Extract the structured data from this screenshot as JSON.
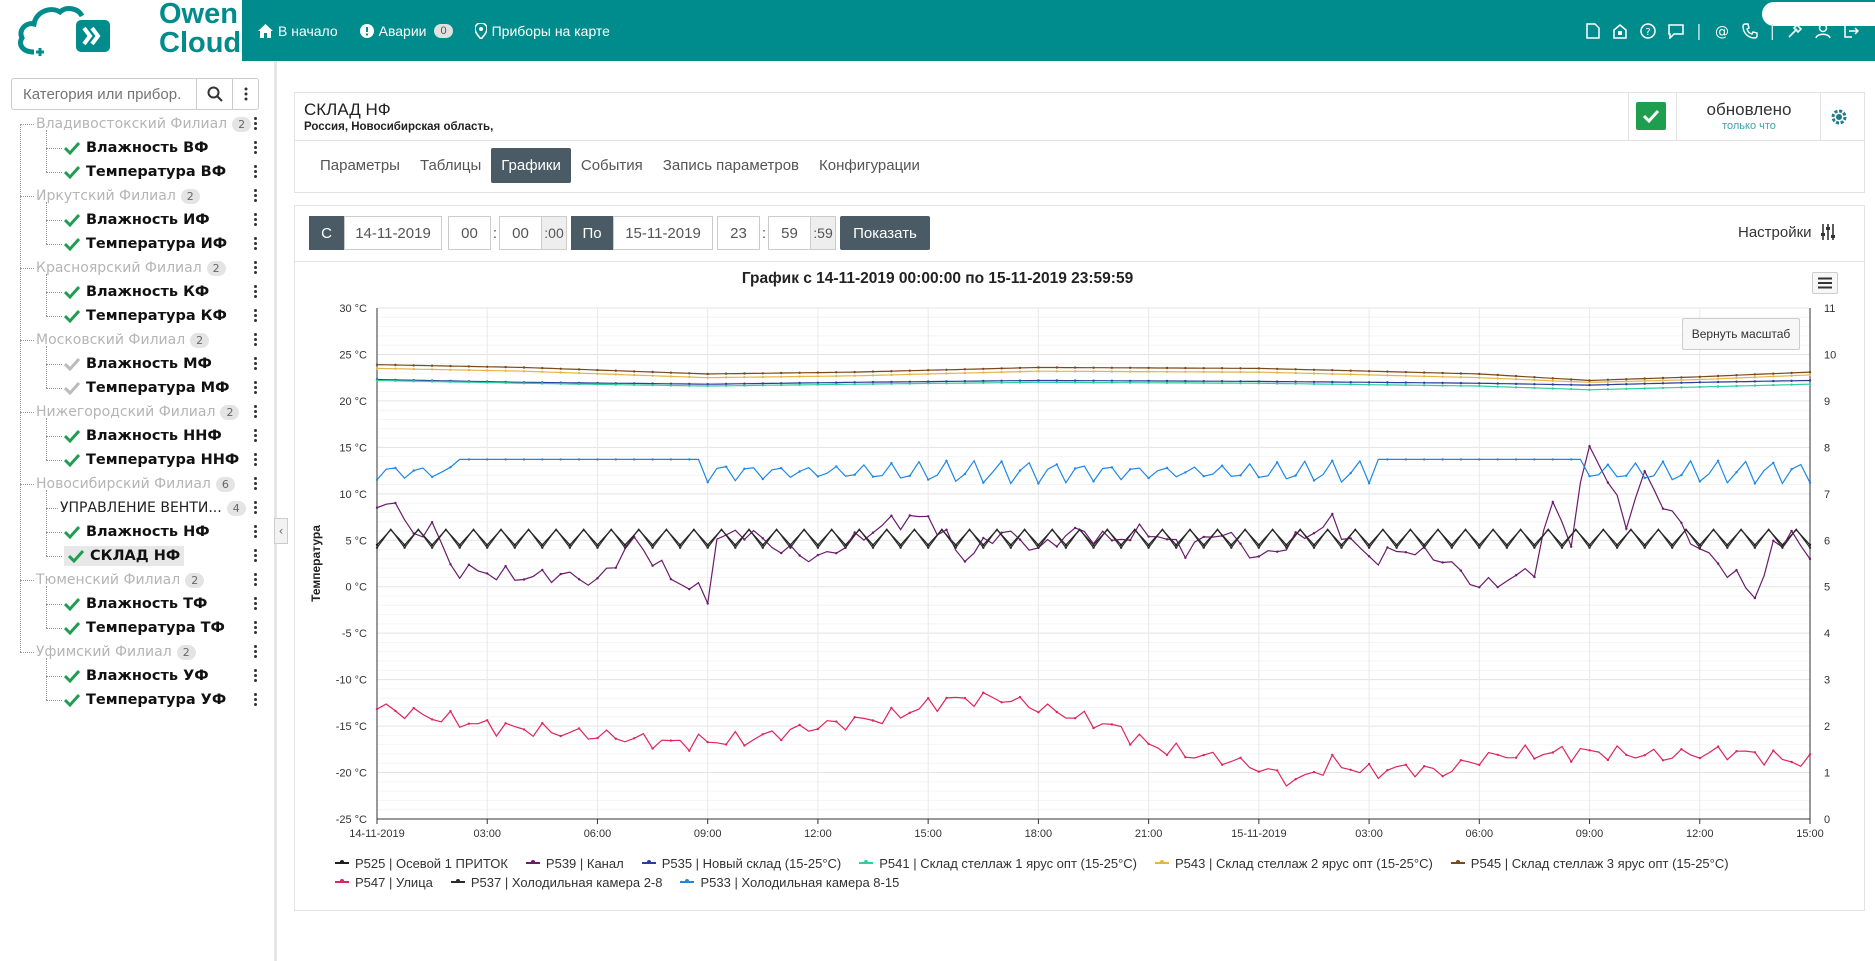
{
  "brand": {
    "line1": "Owen",
    "line2": "Cloud"
  },
  "nav": {
    "home": "В начало",
    "alarms": "Аварии",
    "alarms_count": "0",
    "map": "Приборы на карте"
  },
  "top_icons": [
    "document-icon",
    "lock-icon",
    "help-icon",
    "chat-icon",
    "email-icon",
    "phone-icon",
    "tools-icon",
    "user-icon",
    "logout-icon"
  ],
  "sidebar": {
    "search_placeholder": "Категория или прибор.",
    "groups": [
      {
        "label": "Владивостокский Филиал",
        "count": "2",
        "items": [
          {
            "label": "Влажность ВФ",
            "ok": true
          },
          {
            "label": "Температура ВФ",
            "ok": true
          }
        ]
      },
      {
        "label": "Иркутский Филиал",
        "count": "2",
        "items": [
          {
            "label": "Влажность ИФ",
            "ok": true
          },
          {
            "label": "Температура ИФ",
            "ok": true
          }
        ]
      },
      {
        "label": "Красноярский Филиал",
        "count": "2",
        "items": [
          {
            "label": "Влажность КФ",
            "ok": true
          },
          {
            "label": "Температура КФ",
            "ok": true
          }
        ]
      },
      {
        "label": "Московский Филиал",
        "count": "2",
        "items": [
          {
            "label": "Влажность МФ",
            "ok": false
          },
          {
            "label": "Температура МФ",
            "ok": false
          }
        ]
      },
      {
        "label": "Нижегородский Филиал",
        "count": "2",
        "items": [
          {
            "label": "Влажность ННФ",
            "ok": true
          },
          {
            "label": "Температура ННФ",
            "ok": true
          }
        ]
      },
      {
        "label": "Новосибирский Филиал",
        "count": "6",
        "subgroup": {
          "label": "УПРАВЛЕНИЕ ВЕНТИ...",
          "count": "4"
        },
        "items": [
          {
            "label": "Влажность НФ",
            "ok": true
          },
          {
            "label": "СКЛАД НФ",
            "ok": true,
            "selected": true
          }
        ]
      },
      {
        "label": "Тюменский Филиал",
        "count": "2",
        "items": [
          {
            "label": "Влажность ТФ",
            "ok": true
          },
          {
            "label": "Температура ТФ",
            "ok": true
          }
        ]
      },
      {
        "label": "Уфимский Филиал",
        "count": "2",
        "items": [
          {
            "label": "Влажность УФ",
            "ok": true
          },
          {
            "label": "Температура УФ",
            "ok": true
          }
        ]
      }
    ]
  },
  "device": {
    "title": "СКЛАД НФ",
    "address": "Россия, Новосибирская область,",
    "status": "обновлено",
    "status_sub": "только что"
  },
  "tabs": [
    {
      "label": "Параметры",
      "active": false
    },
    {
      "label": "Таблицы",
      "active": false
    },
    {
      "label": "Графики",
      "active": true
    },
    {
      "label": "События",
      "active": false
    },
    {
      "label": "Запись параметров",
      "active": false
    },
    {
      "label": "Конфигурации",
      "active": false
    }
  ],
  "toolbar": {
    "from_label": "С",
    "from_date": "14-11-2019",
    "from_h": "00",
    "from_m": "00",
    "from_s": ":00",
    "to_label": "По",
    "to_date": "15-11-2019",
    "to_h": "23",
    "to_m": "59",
    "to_s": ":59",
    "show": "Показать",
    "settings": "Настройки",
    "sep": ":"
  },
  "chart_data": {
    "type": "line",
    "title": "График с 14-11-2019 00:00:00 по 15-11-2019 23:59:59",
    "ylabel": "Температура",
    "ylim": [
      -25,
      30
    ],
    "yticks": [
      "30 °C",
      "25 °C",
      "20 °C",
      "15 °C",
      "10 °C",
      "5 °C",
      "0 °C",
      "-5 °C",
      "-10 °C",
      "-15 °C",
      "-20 °C",
      "-25 °C"
    ],
    "y2lim": [
      0,
      11
    ],
    "y2ticks": [
      "11",
      "10",
      "9",
      "8",
      "7",
      "6",
      "5",
      "4",
      "3",
      "2",
      "1",
      "0"
    ],
    "xticks": [
      "14-11-2019",
      "03:00",
      "06:00",
      "09:00",
      "12:00",
      "15:00",
      "18:00",
      "21:00",
      "15-11-2019",
      "03:00",
      "06:00",
      "09:00",
      "12:00",
      "15:00"
    ],
    "xlim_hours": [
      0,
      39
    ],
    "reset_zoom": "Вернуть масштаб",
    "grid": true,
    "legend_position": "bottom",
    "series": [
      {
        "name": "P525 | Осевой 1 ПРИТОК",
        "color": "#1f1f1f",
        "kind": "sawtooth",
        "base": 4.5,
        "amp": 6.5
      },
      {
        "name": "P539 | Канал",
        "color": "#6a1b6a",
        "kind": "noisy",
        "points": [
          [
            0,
            8
          ],
          [
            0.5,
            9.5
          ],
          [
            1,
            5
          ],
          [
            1.5,
            7
          ],
          [
            2,
            2
          ],
          [
            3,
            1.5
          ],
          [
            4,
            1
          ],
          [
            5,
            1.3
          ],
          [
            6,
            0.5
          ],
          [
            7,
            5
          ],
          [
            8,
            1
          ],
          [
            9,
            -1
          ],
          [
            9.2,
            5
          ],
          [
            10,
            6
          ],
          [
            11,
            4
          ],
          [
            12,
            3
          ],
          [
            13,
            5
          ],
          [
            14,
            7
          ],
          [
            15,
            7.5
          ],
          [
            16,
            3
          ],
          [
            17,
            6
          ],
          [
            18,
            4
          ],
          [
            19,
            6
          ],
          [
            20,
            5
          ],
          [
            21,
            6
          ],
          [
            22,
            4
          ],
          [
            23,
            6
          ],
          [
            24,
            3
          ],
          [
            25,
            5
          ],
          [
            26,
            7
          ],
          [
            27,
            3
          ],
          [
            28,
            4
          ],
          [
            29,
            3
          ],
          [
            30,
            0
          ],
          [
            31,
            1
          ],
          [
            31.5,
            2
          ],
          [
            32,
            9
          ],
          [
            32.5,
            5
          ],
          [
            33,
            15.5
          ],
          [
            34,
            7
          ],
          [
            34.5,
            12
          ],
          [
            35,
            9
          ],
          [
            36,
            4
          ],
          [
            37,
            1
          ],
          [
            37.5,
            -1
          ],
          [
            38,
            4
          ],
          [
            38.5,
            6
          ],
          [
            39,
            2.5
          ]
        ]
      },
      {
        "name": "P535 | Новый склад (15-25°С)",
        "color": "#2c3e99",
        "kind": "smooth",
        "points": [
          [
            0,
            22.3
          ],
          [
            4,
            22
          ],
          [
            9,
            21.8
          ],
          [
            13,
            22
          ],
          [
            18,
            22.2
          ],
          [
            24,
            22.1
          ],
          [
            30,
            21.9
          ],
          [
            33,
            21.7
          ],
          [
            36,
            22
          ],
          [
            39,
            22.2
          ]
        ]
      },
      {
        "name": "P541 | Склад стеллаж 1 ярус опт (15-25°С)",
        "color": "#2ecfa0",
        "kind": "smooth",
        "points": [
          [
            0,
            22.2
          ],
          [
            4,
            21.9
          ],
          [
            9,
            21.6
          ],
          [
            13,
            21.8
          ],
          [
            18,
            22
          ],
          [
            24,
            21.9
          ],
          [
            30,
            21.6
          ],
          [
            33,
            21.2
          ],
          [
            36,
            21.5
          ],
          [
            39,
            21.8
          ]
        ]
      },
      {
        "name": "P543 | Склад стеллаж 2 ярус опт (15-25°С)",
        "color": "#e6b54a",
        "kind": "smooth",
        "points": [
          [
            0,
            23.5
          ],
          [
            4,
            23.2
          ],
          [
            9,
            22.5
          ],
          [
            13,
            22.7
          ],
          [
            18,
            23.2
          ],
          [
            24,
            23.1
          ],
          [
            30,
            22.5
          ],
          [
            33,
            22
          ],
          [
            36,
            22.3
          ],
          [
            39,
            22.8
          ]
        ]
      },
      {
        "name": "P545 | Склад стеллаж 3 ярус опт (15-25°С)",
        "color": "#7a4a1a",
        "kind": "smooth",
        "points": [
          [
            0,
            23.9
          ],
          [
            4,
            23.6
          ],
          [
            9,
            22.9
          ],
          [
            13,
            23.1
          ],
          [
            18,
            23.6
          ],
          [
            24,
            23.5
          ],
          [
            30,
            22.9
          ],
          [
            33,
            22.2
          ],
          [
            36,
            22.6
          ],
          [
            39,
            23.1
          ]
        ]
      },
      {
        "name": "P547 | Улица",
        "color": "#e0245e",
        "kind": "noisy",
        "points": [
          [
            0,
            -13
          ],
          [
            3,
            -15
          ],
          [
            6,
            -16
          ],
          [
            8,
            -16.8
          ],
          [
            10,
            -16.5
          ],
          [
            12,
            -15
          ],
          [
            14,
            -14
          ],
          [
            15.5,
            -12.2
          ],
          [
            17,
            -12
          ],
          [
            18,
            -13
          ],
          [
            20,
            -15
          ],
          [
            21,
            -17
          ],
          [
            22,
            -18
          ],
          [
            23,
            -18.5
          ],
          [
            24,
            -19.5
          ],
          [
            25,
            -21
          ],
          [
            26,
            -19
          ],
          [
            27,
            -20
          ],
          [
            28,
            -19.5
          ],
          [
            29,
            -20
          ],
          [
            30,
            -18.5
          ],
          [
            31,
            -18
          ],
          [
            33,
            -17.8
          ],
          [
            35,
            -18.2
          ],
          [
            37,
            -17.8
          ],
          [
            39,
            -19
          ]
        ]
      },
      {
        "name": "P537 | Холодильная камера 2-8",
        "color": "#2b2b2b",
        "kind": "sawtooth",
        "base": 4.2,
        "amp": 2
      },
      {
        "name": "P533 | Холодильная камера 8-15",
        "color": "#1e88e5",
        "kind": "sawtooth2",
        "base": 11.5,
        "amp": 2.5
      }
    ]
  }
}
